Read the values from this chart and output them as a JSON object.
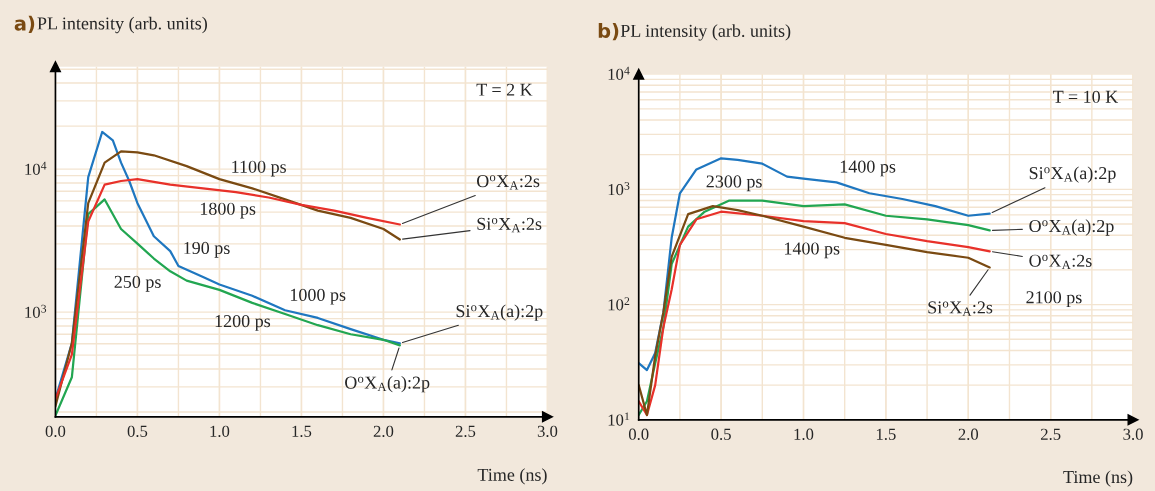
{
  "chart_data": [
    {
      "type": "line",
      "title": "a)",
      "ylabel": "PL intensity (arb. units)",
      "xlabel": "Time (ns)",
      "log": "y",
      "grid": true,
      "xlim": [
        0,
        3
      ],
      "ylim": [
        185,
        52000
      ],
      "xticks": [
        {
          "value": 0,
          "label": "0.0"
        },
        {
          "value": 0.5,
          "label": "0.5"
        },
        {
          "value": 1,
          "label": "1.0"
        },
        {
          "value": 1.5,
          "label": "1.5"
        },
        {
          "value": 2,
          "label": "2.0"
        },
        {
          "value": 2.5,
          "label": "2.5"
        },
        {
          "value": 3,
          "label": "3.0"
        }
      ],
      "yticks": [
        {
          "value": 1000,
          "label": "10$^{3}$"
        },
        {
          "value": 10000,
          "label": "10$^{4}$"
        }
      ],
      "series": [
        {
          "name": "Si$^{o}$X$_{A}$(a):2p",
          "color": "#1f77c0",
          "x": [
            0,
            0.1,
            0.2,
            0.285,
            0.35,
            0.4,
            0.45,
            0.5,
            0.6,
            0.7,
            0.75,
            0.9,
            1.0,
            1.2,
            1.4,
            1.6,
            1.8,
            2.0,
            2.1
          ],
          "values": [
            247,
            605,
            8800,
            18200,
            15900,
            11100,
            8260,
            5780,
            3390,
            2670,
            2100,
            1760,
            1560,
            1300,
            1030,
            910,
            760,
            640,
            605
          ]
        },
        {
          "name": "O$^{o}$X$_{A}$(a):2p",
          "color": "#22a651",
          "x": [
            0,
            0.1,
            0.2,
            0.3,
            0.4,
            0.5,
            0.6,
            0.7,
            0.8,
            1.0,
            1.2,
            1.4,
            1.6,
            1.8,
            2.0,
            2.1
          ],
          "values": [
            189,
            350,
            4840,
            6140,
            3810,
            3010,
            2370,
            1930,
            1660,
            1430,
            1160,
            970,
            810,
            700,
            640,
            585
          ]
        },
        {
          "name": "Si$^{o}$X$_{A}$:2s",
          "color": "#7a4a12",
          "x": [
            0,
            0.1,
            0.2,
            0.3,
            0.4,
            0.5,
            0.6,
            0.8,
            1.0,
            1.2,
            1.4,
            1.6,
            1.8,
            2.0,
            2.1
          ],
          "values": [
            220,
            605,
            5780,
            11100,
            13300,
            13100,
            12500,
            10500,
            8510,
            7340,
            6140,
            5130,
            4560,
            3810,
            3220
          ]
        },
        {
          "name": "O$^{o}$X$_{A}$:2s",
          "color": "#e8312a",
          "x": [
            0,
            0.1,
            0.2,
            0.3,
            0.4,
            0.5,
            0.7,
            0.9,
            1.1,
            1.3,
            1.5,
            1.7,
            1.9,
            2.1
          ],
          "values": [
            247,
            505,
            4300,
            7790,
            8260,
            8510,
            7790,
            7340,
            6910,
            6330,
            5620,
            5130,
            4560,
            4100
          ]
        }
      ],
      "annotations": [
        "T = 2 K",
        "1100 ps",
        "1800 ps",
        "190 ps",
        "250 ps",
        "1000 ps",
        "1200 ps"
      ]
    },
    {
      "type": "line",
      "title": "b)",
      "ylabel": "PL intensity (arb. units)",
      "xlabel": "Time (ns)",
      "log": "y",
      "grid": true,
      "xlim": [
        0,
        3
      ],
      "ylim": [
        10,
        10000
      ],
      "xticks": [
        {
          "value": 0,
          "label": "0.0"
        },
        {
          "value": 0.5,
          "label": "0.5"
        },
        {
          "value": 1,
          "label": "1.0"
        },
        {
          "value": 1.5,
          "label": "1.5"
        },
        {
          "value": 2,
          "label": "2.0"
        },
        {
          "value": 2.5,
          "label": "2.5"
        },
        {
          "value": 3,
          "label": "3.0"
        }
      ],
      "yticks": [
        {
          "value": 10,
          "label": "10$^{1}$"
        },
        {
          "value": 100,
          "label": "10$^{2}$"
        },
        {
          "value": 1000,
          "label": "10$^{3}$"
        },
        {
          "value": 10000,
          "label": "10$^{4}$"
        }
      ],
      "series": [
        {
          "name": "Si$^{o}$X$_{A}$(a):2p",
          "color": "#1f77c0",
          "x": [
            0,
            0.05,
            0.1,
            0.15,
            0.2,
            0.25,
            0.35,
            0.5,
            0.6,
            0.75,
            0.9,
            1.0,
            1.2,
            1.4,
            1.6,
            1.8,
            2.0,
            2.13
          ],
          "values": [
            31,
            27,
            38,
            86,
            380,
            925,
            1490,
            1860,
            1800,
            1670,
            1290,
            1240,
            1150,
            925,
            825,
            715,
            590,
            615
          ]
        },
        {
          "name": "O$^{o}$X$_{A}$(a):2p",
          "color": "#22a651",
          "x": [
            0,
            0.05,
            0.1,
            0.15,
            0.2,
            0.3,
            0.4,
            0.55,
            0.75,
            1.0,
            1.25,
            1.5,
            1.75,
            2.0,
            2.13
          ],
          "values": [
            11,
            14.5,
            31,
            64,
            225,
            475,
            640,
            800,
            800,
            715,
            740,
            590,
            550,
            490,
            440
          ]
        },
        {
          "name": "O$^{o}$X$_{A}$:2s",
          "color": "#e8312a",
          "x": [
            0,
            0.05,
            0.1,
            0.15,
            0.2,
            0.25,
            0.35,
            0.5,
            0.75,
            1.0,
            1.25,
            1.5,
            1.75,
            2.0,
            2.13
          ],
          "values": [
            14.5,
            11,
            20,
            64,
            135,
            330,
            550,
            640,
            590,
            530,
            510,
            410,
            355,
            315,
            290
          ]
        },
        {
          "name": "Si$^{o}$X$_{A}$:2s",
          "color": "#7a4a12",
          "x": [
            0,
            0.05,
            0.1,
            0.15,
            0.2,
            0.3,
            0.45,
            0.6,
            0.75,
            1.0,
            1.25,
            1.5,
            1.75,
            2.0,
            2.13
          ],
          "values": [
            20,
            11,
            36,
            86,
            260,
            610,
            715,
            660,
            590,
            475,
            380,
            330,
            285,
            255,
            210
          ]
        }
      ],
      "annotations": [
        "T = 10 K",
        "1400 ps",
        "2300 ps",
        "1400 ps",
        "2100 ps"
      ]
    }
  ]
}
